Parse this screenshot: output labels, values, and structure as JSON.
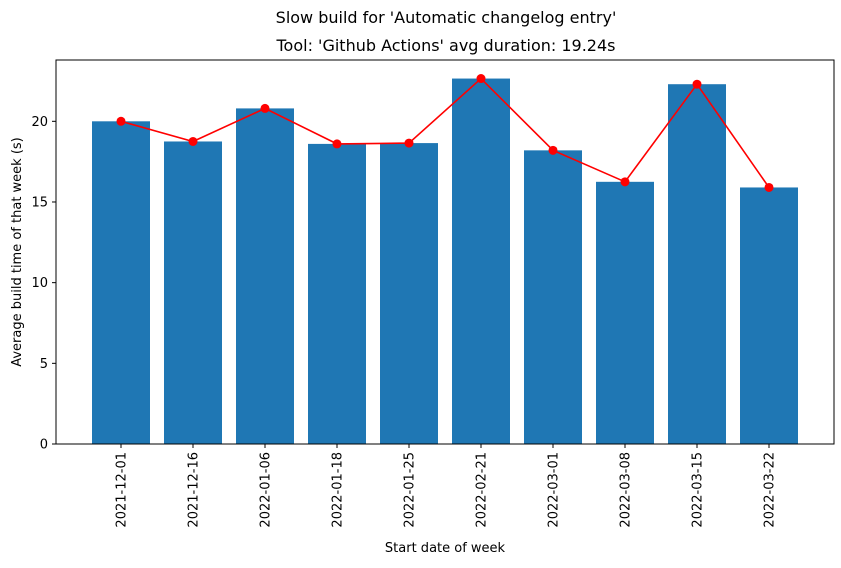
{
  "chart_data": {
    "type": "bar",
    "suptitle": "Slow build for 'Automatic changelog entry'",
    "title": "Tool: 'Github Actions' avg duration: 19.24s",
    "xlabel": "Start date of week",
    "ylabel": "Average build time of that week (s)",
    "categories": [
      "2021-12-01",
      "2021-12-16",
      "2022-01-06",
      "2022-01-18",
      "2022-01-25",
      "2022-02-21",
      "2022-03-01",
      "2022-03-08",
      "2022-03-15",
      "2022-03-22"
    ],
    "values": [
      20.0,
      18.75,
      20.8,
      18.6,
      18.65,
      22.65,
      18.2,
      16.25,
      22.3,
      15.9
    ],
    "ylim": [
      0,
      23.8
    ],
    "yticks": [
      0,
      5,
      10,
      15,
      20
    ],
    "bar_color": "#1f77b4",
    "line_color": "#ff0000",
    "line_overlay": true,
    "grid": false,
    "legend": "none"
  }
}
